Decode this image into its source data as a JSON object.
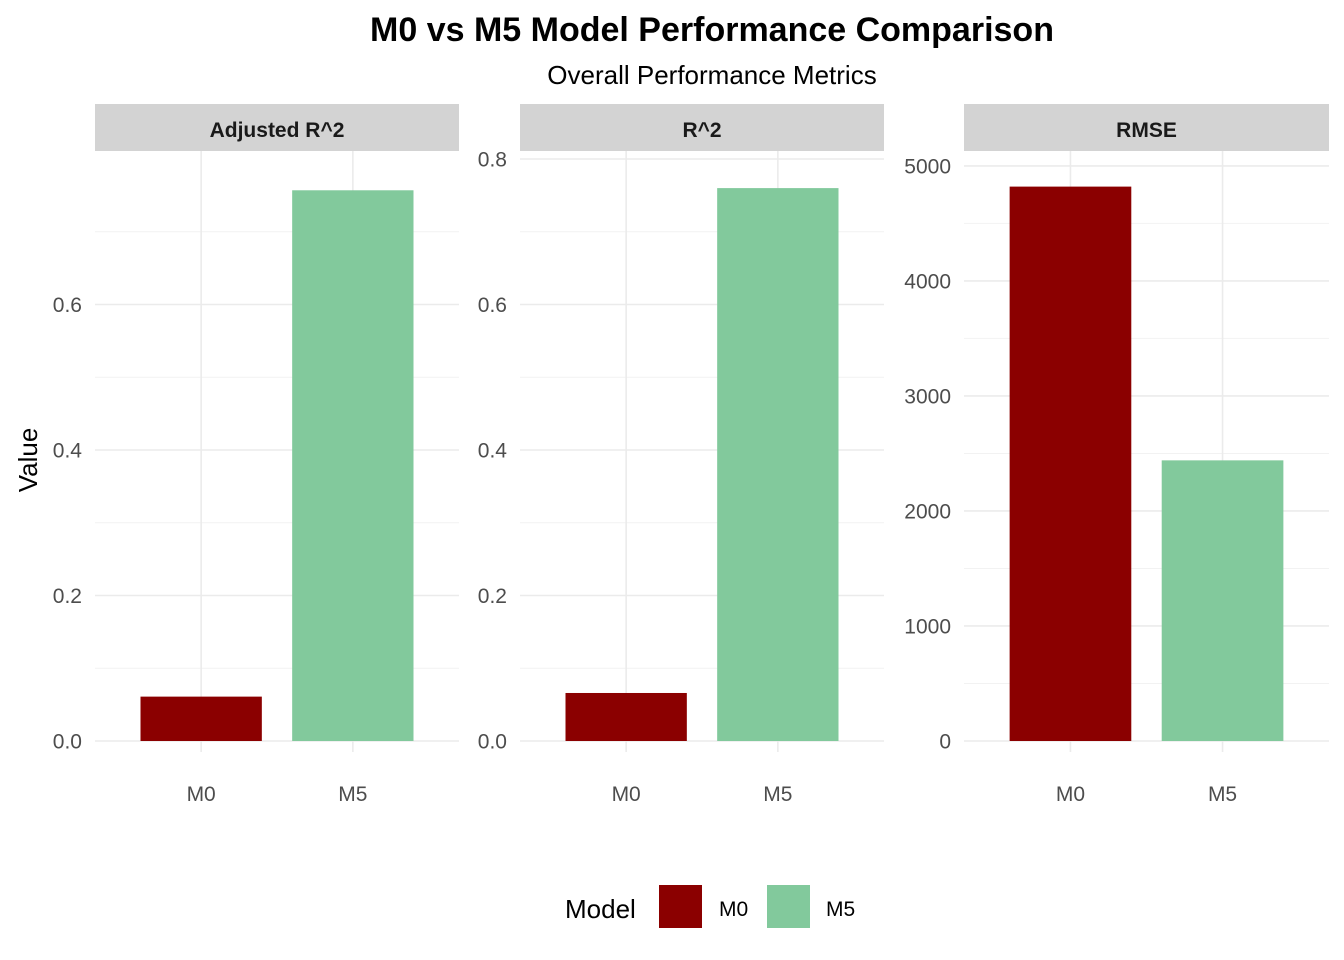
{
  "chart_data": {
    "type": "bar",
    "title": "M0 vs M5 Model Performance Comparison",
    "subtitle": "Overall Performance Metrics",
    "ylabel": "Value",
    "xlabel": "",
    "categories": [
      "M0",
      "M5"
    ],
    "colors": {
      "M0": "#8B0000",
      "M5": "#82C99C"
    },
    "legend": {
      "title": "Model",
      "position": "bottom",
      "entries": [
        "M0",
        "M5"
      ]
    },
    "grid": true,
    "facets": [
      {
        "label": "Adjusted R^2",
        "values": [
          0.061,
          0.757
        ],
        "ylim": [
          0,
          0.8
        ],
        "yticks": [
          0.0,
          0.2,
          0.4,
          0.6
        ],
        "ytick_labels": [
          "0.0",
          "0.2",
          "0.4",
          "0.6"
        ]
      },
      {
        "label": "R^2",
        "values": [
          0.066,
          0.76
        ],
        "ylim": [
          0,
          0.8
        ],
        "yticks": [
          0.0,
          0.2,
          0.4,
          0.6,
          0.8
        ],
        "ytick_labels": [
          "0.0",
          "0.2",
          "0.4",
          "0.6",
          "0.8"
        ]
      },
      {
        "label": "RMSE",
        "values": [
          4820,
          2440
        ],
        "ylim": [
          0,
          5060
        ],
        "yticks": [
          0,
          1000,
          2000,
          3000,
          4000,
          5000
        ],
        "ytick_labels": [
          "0",
          "1000",
          "2000",
          "3000",
          "4000",
          "5000"
        ]
      }
    ]
  }
}
